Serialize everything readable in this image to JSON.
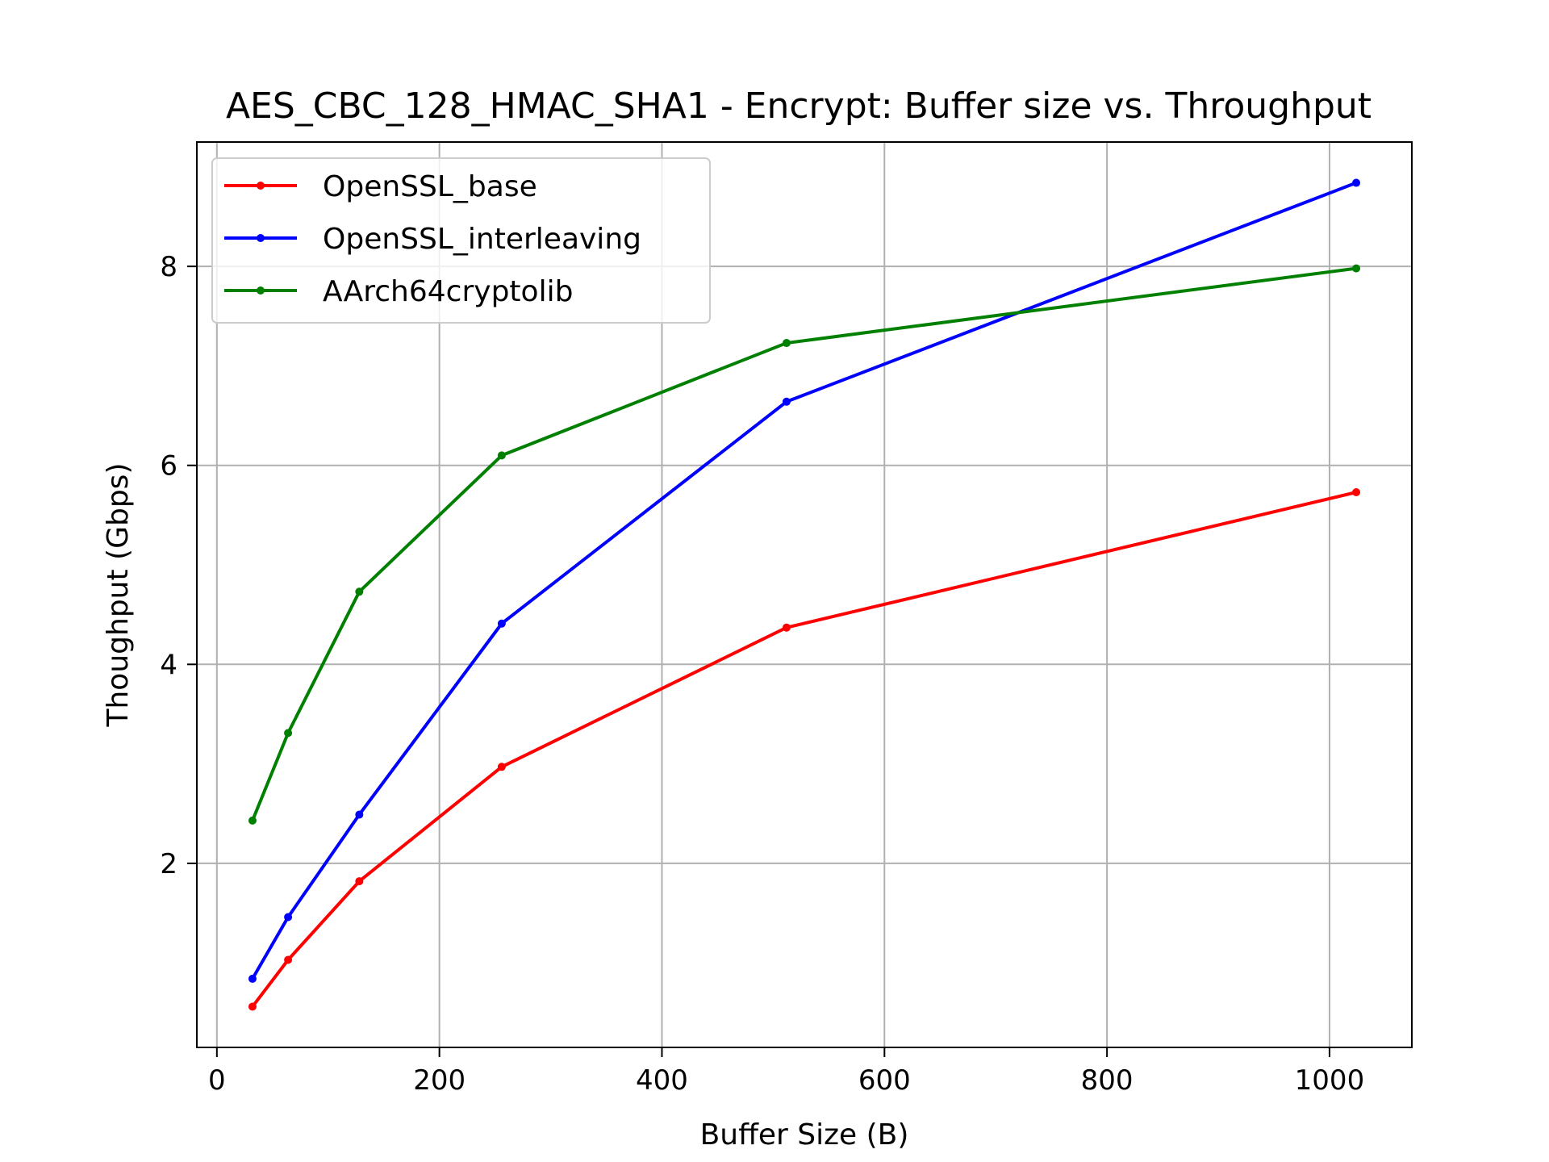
{
  "chart_data": {
    "type": "line",
    "title": "AES_CBC_128_HMAC_SHA1 - Encrypt: Buffer size vs. Throughput",
    "xlabel": "Buffer Size (B)",
    "ylabel": "Thoughput (Gbps)",
    "x": [
      32,
      64,
      128,
      256,
      512,
      1024
    ],
    "xlim": [
      -18,
      1074
    ],
    "ylim": [
      0.15,
      9.25
    ],
    "xticks": [
      0,
      200,
      400,
      600,
      800,
      1000
    ],
    "yticks": [
      2,
      4,
      6,
      8
    ],
    "grid": true,
    "legend_position": "top-left",
    "series": [
      {
        "name": "OpenSSL_base",
        "color": "#ff0000",
        "values": [
          0.56,
          1.03,
          1.82,
          2.97,
          4.37,
          5.73
        ]
      },
      {
        "name": "OpenSSL_interleaving",
        "color": "#0000ff",
        "values": [
          0.84,
          1.46,
          2.49,
          4.41,
          6.64,
          8.84
        ]
      },
      {
        "name": "AArch64cryptolib",
        "color": "#008000",
        "values": [
          2.43,
          3.31,
          4.73,
          6.1,
          7.23,
          7.98
        ]
      }
    ]
  }
}
